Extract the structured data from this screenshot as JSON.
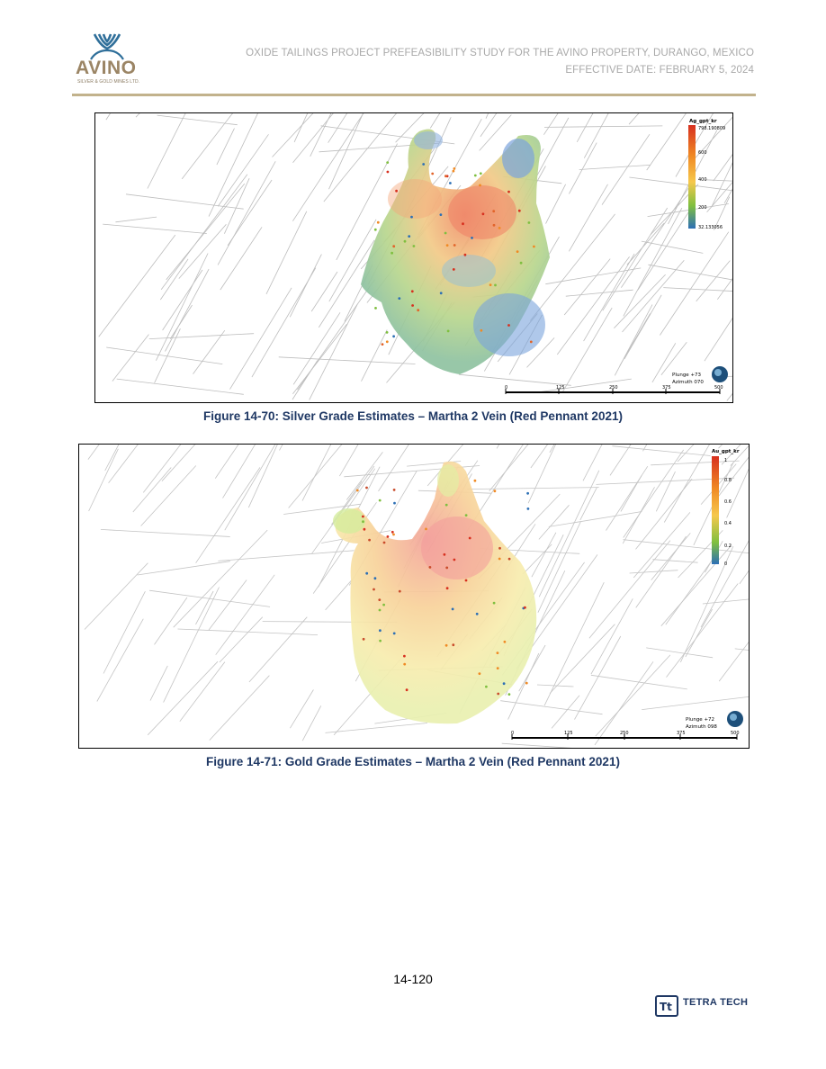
{
  "header": {
    "logo_word": "AVINO",
    "logo_sub": "SILVER & GOLD MINES LTD.",
    "title_line1": "OXIDE TAILINGS PROJECT PREFEASIBILITY STUDY FOR THE AVINO PROPERTY, DURANGO, MEXICO",
    "title_line2": "EFFECTIVE DATE: FEBRUARY 5, 2024"
  },
  "figures": [
    {
      "caption": "Figure 14-70: Silver Grade Estimates – Martha 2 Vein (Red Pennant 2021)",
      "legend_title": "Ag_gpt_kr",
      "legend_ticks": [
        "798.190809",
        "600",
        "400",
        "200",
        "32.133056"
      ],
      "orientation": [
        "Plunge +73",
        "Azimuth 070"
      ],
      "scale_ticks": [
        "0",
        "125",
        "250",
        "375",
        "500"
      ]
    },
    {
      "caption": "Figure 14-71: Gold Grade Estimates – Martha 2 Vein (Red Pennant 2021)",
      "legend_title": "Au_gpt_kr",
      "legend_ticks": [
        "1",
        "0.8",
        "0.6",
        "0.4",
        "0.2",
        "0"
      ],
      "orientation": [
        "Plunge +72",
        "Azimuth 098"
      ],
      "scale_ticks": [
        "0",
        "125",
        "250",
        "375",
        "500"
      ]
    }
  ],
  "footer": {
    "page_number": "14-120",
    "company_logo_text": "TETRA TECH"
  },
  "colors": {
    "caption": "#1f3864",
    "header_text": "#a9a9a9",
    "header_rule": "#c2b28c",
    "avino_gold": "#9b8565",
    "avino_blue": "#2f6f9a"
  }
}
